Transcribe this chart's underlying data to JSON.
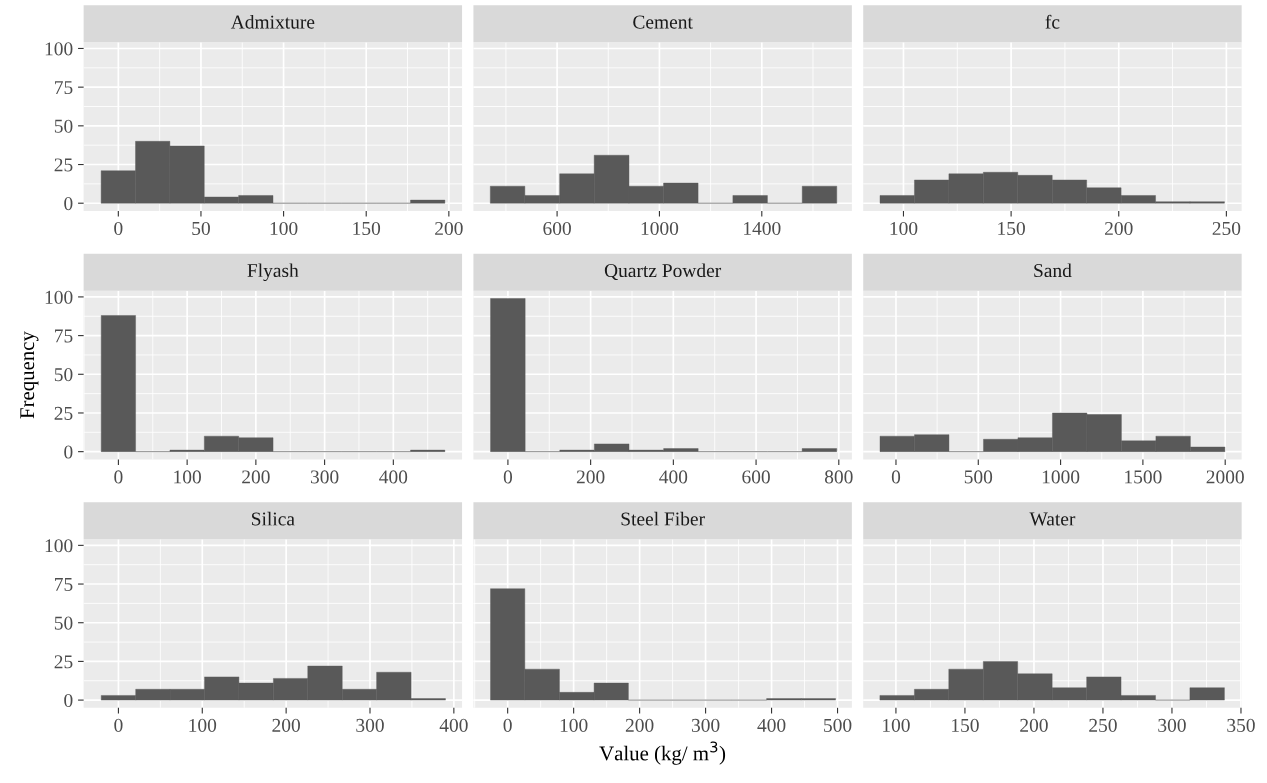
{
  "chart_data": [
    {
      "type": "histogram",
      "title": "Admixture",
      "bins": [
        -10.4,
        10.4,
        31.2,
        52,
        72.8,
        93.6,
        114.4,
        135.2,
        156,
        176.8,
        197.6
      ],
      "values": [
        21,
        40,
        37,
        4,
        5,
        0,
        0,
        0,
        0,
        2
      ],
      "color": "#595959",
      "xlim": [
        -21,
        208
      ],
      "xticks": [
        0,
        50,
        100,
        150,
        200
      ],
      "ylim": [
        -5,
        104
      ],
      "yticks": [
        0,
        25,
        50,
        75,
        100
      ],
      "grid": true
    },
    {
      "type": "histogram",
      "title": "Cement",
      "bins": [
        339,
        474,
        610,
        745,
        881,
        1016,
        1151,
        1287,
        1422,
        1558,
        1693
      ],
      "values": [
        11,
        5,
        19,
        31,
        11,
        13,
        0,
        5,
        0,
        11
      ],
      "color": "#595959",
      "xlim": [
        273,
        1752
      ],
      "xticks": [
        600,
        1000,
        1400
      ],
      "ylim": [
        -5,
        104
      ],
      "yticks": [
        0,
        25,
        50,
        75,
        100
      ],
      "grid": true,
      "tick_labels": "x"
    },
    {
      "type": "histogram",
      "title": "fc",
      "bins": [
        89.1,
        105.1,
        121.1,
        137.1,
        153.1,
        169.1,
        185.1,
        201.1,
        217.1,
        233.1,
        249.1
      ],
      "values": [
        5,
        15,
        19,
        20,
        18,
        15,
        10,
        5,
        1,
        1
      ],
      "color": "#595959",
      "xlim": [
        81.3,
        257.1
      ],
      "xticks": [
        100,
        150,
        200,
        250
      ],
      "ylim": [
        -5,
        104
      ],
      "yticks": [
        0,
        25,
        50,
        75,
        100
      ],
      "grid": true,
      "tick_labels": "x"
    },
    {
      "type": "histogram",
      "title": "Flyash",
      "bins": [
        -25,
        25,
        75,
        125,
        175,
        225,
        275,
        325,
        375,
        425,
        475
      ],
      "values": [
        88,
        0,
        1,
        10,
        9,
        0,
        0,
        0,
        0,
        1
      ],
      "color": "#595959",
      "xlim": [
        -50.6,
        500
      ],
      "xticks": [
        0,
        100,
        200,
        300,
        400
      ],
      "ylim": [
        -5,
        104
      ],
      "yticks": [
        0,
        25,
        50,
        75,
        100
      ],
      "grid": true,
      "ylabel": "Frequency"
    },
    {
      "type": "histogram",
      "title": "Quartz Powder",
      "bins": [
        -42,
        41.7,
        125.4,
        209,
        292.8,
        376.5,
        460,
        544,
        627.7,
        711.4,
        795
      ],
      "values": [
        99,
        0,
        1,
        5,
        1,
        2,
        0,
        0,
        0,
        2
      ],
      "color": "#595959",
      "xlim": [
        -83.4,
        831.6
      ],
      "xticks": [
        0,
        200,
        400,
        600,
        800
      ],
      "ylim": [
        -5,
        104
      ],
      "yticks": [
        0,
        25,
        50,
        75,
        100
      ],
      "grid": true,
      "tick_labels": "x"
    },
    {
      "type": "histogram",
      "title": "Sand",
      "bins": [
        -97,
        112.5,
        322,
        531.5,
        741,
        950.5,
        1160,
        1369.5,
        1579,
        1788.5,
        1998
      ],
      "values": [
        10,
        11,
        0,
        8,
        9,
        25,
        24,
        7,
        10,
        3
      ],
      "color": "#595959",
      "xlim": [
        -199,
        2100
      ],
      "xticks": [
        0,
        500,
        1000,
        1500,
        2000
      ],
      "ylim": [
        -5,
        104
      ],
      "yticks": [
        0,
        25,
        50,
        75,
        100
      ],
      "grid": true,
      "tick_labels": "x"
    },
    {
      "type": "histogram",
      "title": "Silica",
      "bins": [
        -20.5,
        20.6,
        61.6,
        102.7,
        143.7,
        184.8,
        225.8,
        266.9,
        307.9,
        349,
        390
      ],
      "values": [
        3,
        7,
        7,
        15,
        11,
        14,
        22,
        7,
        18,
        1
      ],
      "color": "#595959",
      "xlim": [
        -41.5,
        409.8
      ],
      "xticks": [
        0,
        100,
        200,
        300,
        400
      ],
      "ylim": [
        -5,
        104
      ],
      "yticks": [
        0,
        25,
        50,
        75,
        100
      ],
      "grid": true
    },
    {
      "type": "histogram",
      "title": "Steel Fiber",
      "bins": [
        -26,
        26,
        78.5,
        131,
        183,
        235.5,
        288,
        340,
        392.5,
        445,
        497
      ],
      "values": [
        72,
        20,
        5,
        11,
        0,
        0,
        0,
        0,
        1,
        1
      ],
      "color": "#595959",
      "xlim": [
        -51.9,
        521.7
      ],
      "xticks": [
        0,
        100,
        200,
        300,
        400,
        500
      ],
      "ylim": [
        -5,
        104
      ],
      "yticks": [
        0,
        25,
        50,
        75,
        100
      ],
      "grid": true,
      "tick_labels": "x",
      "xlabel": "Value (kg/ m$^{3}$)"
    },
    {
      "type": "histogram",
      "title": "Water",
      "bins": [
        88.4,
        113.4,
        138.3,
        163.3,
        188.2,
        213.2,
        238.2,
        263.1,
        288.1,
        313,
        338
      ],
      "values": [
        3,
        7,
        20,
        25,
        17,
        8,
        15,
        3,
        0,
        8
      ],
      "color": "#595959",
      "xlim": [
        76.3,
        350.5
      ],
      "xticks": [
        100,
        150,
        200,
        250,
        300,
        350
      ],
      "ylim": [
        -5,
        104
      ],
      "yticks": [
        0,
        25,
        50,
        75,
        100
      ],
      "grid": true,
      "tick_labels": "x"
    }
  ]
}
